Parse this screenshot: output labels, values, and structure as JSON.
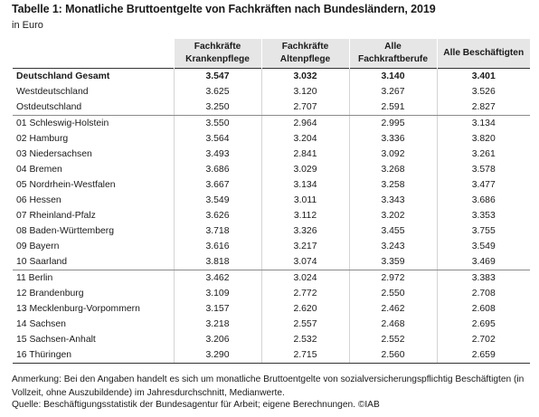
{
  "title": "Tabelle 1: Monatliche Bruttoentgelte von Fachkräften nach Bundesländern, 2019",
  "subtitle": "in Euro",
  "columns": [
    {
      "line1": "Fachkräfte",
      "line2": "Krankenpflege"
    },
    {
      "line1": "Fachkräfte",
      "line2": "Altenpflege"
    },
    {
      "line1": "Alle",
      "line2": "Fachkraftberufe"
    },
    {
      "line1": "Alle Beschäftigten",
      "line2": ""
    }
  ],
  "rows": [
    {
      "name": "Deutschland Gesamt",
      "values": [
        "3.547",
        "3.032",
        "3.140",
        "3.401"
      ],
      "bold": true
    },
    {
      "name": "Westdeutschland",
      "values": [
        "3.625",
        "3.120",
        "3.267",
        "3.526"
      ]
    },
    {
      "name": "Ostdeutschland",
      "values": [
        "3.250",
        "2.707",
        "2.591",
        "2.827"
      ],
      "group_end": true
    },
    {
      "name": "01 Schleswig-Holstein",
      "values": [
        "3.550",
        "2.964",
        "2.995",
        "3.134"
      ]
    },
    {
      "name": "02 Hamburg",
      "values": [
        "3.564",
        "3.204",
        "3.336",
        "3.820"
      ]
    },
    {
      "name": "03 Niedersachsen",
      "values": [
        "3.493",
        "2.841",
        "3.092",
        "3.261"
      ]
    },
    {
      "name": "04 Bremen",
      "values": [
        "3.686",
        "3.029",
        "3.268",
        "3.578"
      ]
    },
    {
      "name": "05 Nordrhein-Westfalen",
      "values": [
        "3.667",
        "3.134",
        "3.258",
        "3.477"
      ]
    },
    {
      "name": "06 Hessen",
      "values": [
        "3.549",
        "3.011",
        "3.343",
        "3.686"
      ]
    },
    {
      "name": "07 Rheinland-Pfalz",
      "values": [
        "3.626",
        "3.112",
        "3.202",
        "3.353"
      ]
    },
    {
      "name": "08 Baden-Württemberg",
      "values": [
        "3.718",
        "3.326",
        "3.455",
        "3.755"
      ]
    },
    {
      "name": "09 Bayern",
      "values": [
        "3.616",
        "3.217",
        "3.243",
        "3.549"
      ]
    },
    {
      "name": "10 Saarland",
      "values": [
        "3.818",
        "3.074",
        "3.359",
        "3.469"
      ],
      "group_end": true
    },
    {
      "name": "11 Berlin",
      "values": [
        "3.462",
        "3.024",
        "2.972",
        "3.383"
      ]
    },
    {
      "name": "12 Brandenburg",
      "values": [
        "3.109",
        "2.772",
        "2.550",
        "2.708"
      ]
    },
    {
      "name": "13 Mecklenburg-Vorpommern",
      "values": [
        "3.157",
        "2.620",
        "2.462",
        "2.608"
      ]
    },
    {
      "name": "14 Sachsen",
      "values": [
        "3.218",
        "2.557",
        "2.468",
        "2.695"
      ]
    },
    {
      "name": "15 Sachsen-Anhalt",
      "values": [
        "3.206",
        "2.532",
        "2.552",
        "2.702"
      ]
    },
    {
      "name": "16 Thüringen",
      "values": [
        "3.290",
        "2.715",
        "2.560",
        "2.659"
      ],
      "last": true
    }
  ],
  "note": "Anmerkung: Bei den Angaben handelt es sich um monatliche Bruttoentgelte von sozialversicherungspflichtig Beschäftigten (in Vollzeit, ohne Auszubildende) im Jahresdurchschnitt, Medianwerte.",
  "source": "Quelle: Beschäftigungsstatistik der Bundesagentur für Arbeit; eigene Berechnungen. ©IAB",
  "chart_data": {
    "type": "table",
    "title": "Tabelle 1: Monatliche Bruttoentgelte von Fachkräften nach Bundesländern, 2019",
    "subtitle": "in Euro",
    "columns": [
      "Fachkräfte Krankenpflege",
      "Fachkräfte Altenpflege",
      "Alle Fachkraftberufe",
      "Alle Beschäftigten"
    ],
    "rows": [
      [
        "Deutschland Gesamt",
        3547,
        3032,
        3140,
        3401
      ],
      [
        "Westdeutschland",
        3625,
        3120,
        3267,
        3526
      ],
      [
        "Ostdeutschland",
        3250,
        2707,
        2591,
        2827
      ],
      [
        "01 Schleswig-Holstein",
        3550,
        2964,
        2995,
        3134
      ],
      [
        "02 Hamburg",
        3564,
        3204,
        3336,
        3820
      ],
      [
        "03 Niedersachsen",
        3493,
        2841,
        3092,
        3261
      ],
      [
        "04 Bremen",
        3686,
        3029,
        3268,
        3578
      ],
      [
        "05 Nordrhein-Westfalen",
        3667,
        3134,
        3258,
        3477
      ],
      [
        "06 Hessen",
        3549,
        3011,
        3343,
        3686
      ],
      [
        "07 Rheinland-Pfalz",
        3626,
        3112,
        3202,
        3353
      ],
      [
        "08 Baden-Württemberg",
        3718,
        3326,
        3455,
        3755
      ],
      [
        "09 Bayern",
        3616,
        3217,
        3243,
        3549
      ],
      [
        "10 Saarland",
        3818,
        3074,
        3359,
        3469
      ],
      [
        "11 Berlin",
        3462,
        3024,
        2972,
        3383
      ],
      [
        "12 Brandenburg",
        3109,
        2772,
        2550,
        2708
      ],
      [
        "13 Mecklenburg-Vorpommern",
        3157,
        2620,
        2462,
        2608
      ],
      [
        "14 Sachsen",
        3218,
        2557,
        2468,
        2695
      ],
      [
        "15 Sachsen-Anhalt",
        3206,
        2532,
        2552,
        2702
      ],
      [
        "16 Thüringen",
        3290,
        2715,
        2560,
        2659
      ]
    ]
  }
}
